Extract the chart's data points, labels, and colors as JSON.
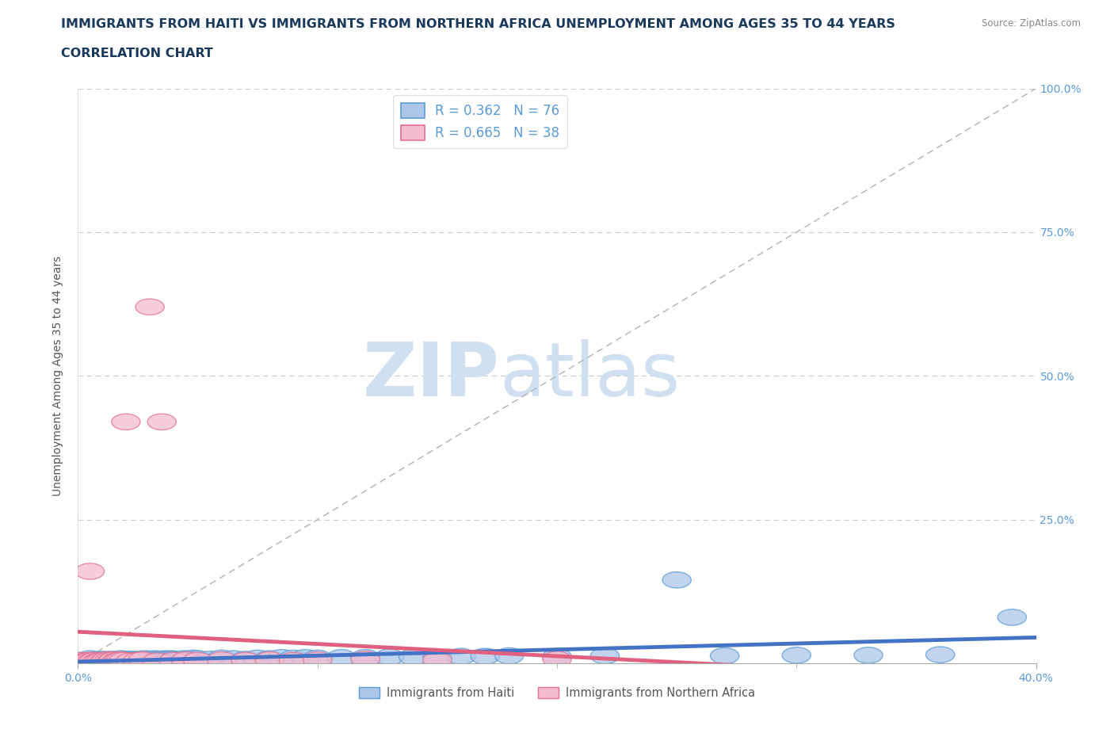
{
  "title_line1": "IMMIGRANTS FROM HAITI VS IMMIGRANTS FROM NORTHERN AFRICA UNEMPLOYMENT AMONG AGES 35 TO 44 YEARS",
  "title_line2": "CORRELATION CHART",
  "source": "Source: ZipAtlas.com",
  "ylabel": "Unemployment Among Ages 35 to 44 years",
  "xlim": [
    0.0,
    0.4
  ],
  "ylim": [
    0.0,
    1.0
  ],
  "ytick_positions": [
    0.0,
    0.25,
    0.5,
    0.75,
    1.0
  ],
  "right_ytick_labels": [
    "100.0%",
    "75.0%",
    "50.0%",
    "25.0%"
  ],
  "right_ytick_positions": [
    1.0,
    0.75,
    0.5,
    0.25
  ],
  "haiti_color": "#adc6e8",
  "haiti_edge_color": "#5b9bd5",
  "northern_africa_color": "#f5bcd0",
  "northern_africa_edge_color": "#e07090",
  "haiti_R": 0.362,
  "haiti_N": 76,
  "northern_africa_R": 0.665,
  "northern_africa_N": 38,
  "haiti_line_color": "#4472c4",
  "northern_africa_line_color": "#e06080",
  "watermark_zip": "ZIP",
  "watermark_atlas": "atlas",
  "watermark_color": "#d0e0f0",
  "legend_haiti_label": "Immigrants from Haiti",
  "legend_na_label": "Immigrants from Northern Africa",
  "title_fontsize": 11.5,
  "axis_label_fontsize": 10,
  "tick_fontsize": 10,
  "haiti_x": [
    0.0,
    0.002,
    0.003,
    0.005,
    0.005,
    0.006,
    0.007,
    0.008,
    0.008,
    0.009,
    0.01,
    0.01,
    0.011,
    0.012,
    0.013,
    0.014,
    0.015,
    0.015,
    0.016,
    0.017,
    0.018,
    0.018,
    0.019,
    0.02,
    0.021,
    0.022,
    0.022,
    0.023,
    0.024,
    0.025,
    0.026,
    0.027,
    0.028,
    0.029,
    0.03,
    0.031,
    0.032,
    0.033,
    0.034,
    0.035,
    0.036,
    0.037,
    0.038,
    0.039,
    0.04,
    0.042,
    0.044,
    0.046,
    0.048,
    0.05,
    0.055,
    0.06,
    0.065,
    0.07,
    0.075,
    0.08,
    0.085,
    0.09,
    0.095,
    0.1,
    0.11,
    0.12,
    0.13,
    0.14,
    0.15,
    0.16,
    0.17,
    0.18,
    0.2,
    0.22,
    0.25,
    0.27,
    0.3,
    0.33,
    0.36,
    0.39
  ],
  "haiti_y": [
    0.005,
    0.003,
    0.004,
    0.005,
    0.008,
    0.004,
    0.005,
    0.003,
    0.006,
    0.004,
    0.005,
    0.007,
    0.004,
    0.006,
    0.005,
    0.007,
    0.004,
    0.006,
    0.005,
    0.004,
    0.006,
    0.008,
    0.005,
    0.007,
    0.004,
    0.006,
    0.005,
    0.007,
    0.006,
    0.005,
    0.007,
    0.006,
    0.008,
    0.006,
    0.007,
    0.005,
    0.008,
    0.006,
    0.007,
    0.005,
    0.008,
    0.007,
    0.006,
    0.008,
    0.007,
    0.006,
    0.008,
    0.007,
    0.009,
    0.008,
    0.007,
    0.009,
    0.008,
    0.007,
    0.009,
    0.008,
    0.01,
    0.009,
    0.01,
    0.009,
    0.01,
    0.01,
    0.011,
    0.011,
    0.01,
    0.012,
    0.012,
    0.013,
    0.012,
    0.013,
    0.145,
    0.013,
    0.014,
    0.014,
    0.015,
    0.08
  ],
  "na_x": [
    0.0,
    0.002,
    0.003,
    0.004,
    0.005,
    0.005,
    0.006,
    0.007,
    0.008,
    0.009,
    0.01,
    0.011,
    0.012,
    0.013,
    0.014,
    0.015,
    0.016,
    0.017,
    0.018,
    0.019,
    0.02,
    0.022,
    0.025,
    0.027,
    0.03,
    0.033,
    0.035,
    0.04,
    0.045,
    0.05,
    0.06,
    0.07,
    0.08,
    0.09,
    0.1,
    0.12,
    0.15,
    0.2
  ],
  "na_y": [
    0.003,
    0.005,
    0.003,
    0.004,
    0.005,
    0.16,
    0.004,
    0.005,
    0.003,
    0.004,
    0.005,
    0.004,
    0.006,
    0.005,
    0.004,
    0.006,
    0.004,
    0.005,
    0.006,
    0.005,
    0.42,
    0.004,
    0.005,
    0.006,
    0.62,
    0.004,
    0.42,
    0.005,
    0.006,
    0.005,
    0.006,
    0.005,
    0.006,
    0.005,
    0.006,
    0.007,
    0.006,
    0.007
  ]
}
